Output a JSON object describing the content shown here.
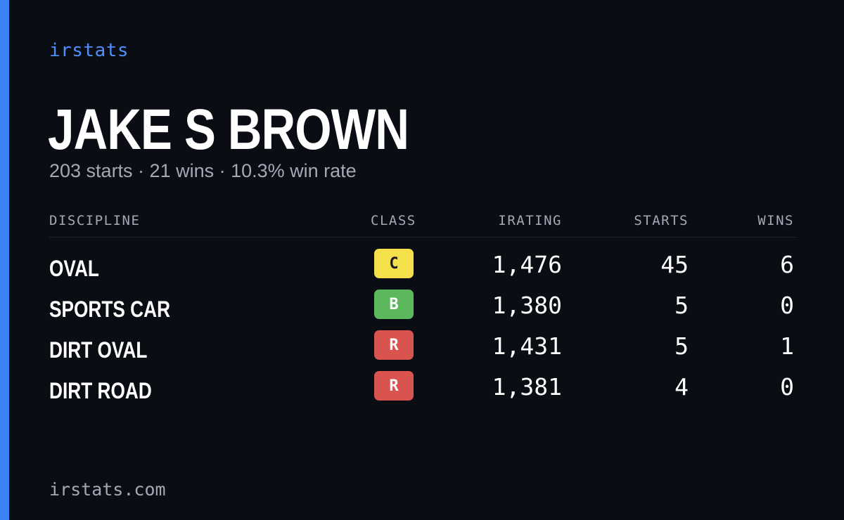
{
  "brand": "irstats",
  "driver": {
    "name": "JAKE S BROWN",
    "summary": "203 starts · 21 wins · 10.3% win rate"
  },
  "table": {
    "headers": {
      "discipline": "DISCIPLINE",
      "class": "CLASS",
      "irating": "IRATING",
      "starts": "STARTS",
      "wins": "WINS"
    },
    "rows": [
      {
        "discipline": "OVAL",
        "class": "C",
        "class_color": "#f3e04a",
        "class_text_color": "#1a1a1a",
        "irating": "1,476",
        "starts": "45",
        "wins": "6"
      },
      {
        "discipline": "SPORTS CAR",
        "class": "B",
        "class_color": "#5cb85c",
        "class_text_color": "#ffffff",
        "irating": "1,380",
        "starts": "5",
        "wins": "0"
      },
      {
        "discipline": "DIRT OVAL",
        "class": "R",
        "class_color": "#d9534f",
        "class_text_color": "#ffffff",
        "irating": "1,431",
        "starts": "5",
        "wins": "1"
      },
      {
        "discipline": "DIRT ROAD",
        "class": "R",
        "class_color": "#d9534f",
        "class_text_color": "#ffffff",
        "irating": "1,381",
        "starts": "4",
        "wins": "0"
      }
    ]
  },
  "footer": {
    "domain": "irstats.com"
  },
  "colors": {
    "accent": "#3b82f6",
    "background": "#0a0d14",
    "muted": "#a3a9b6"
  }
}
